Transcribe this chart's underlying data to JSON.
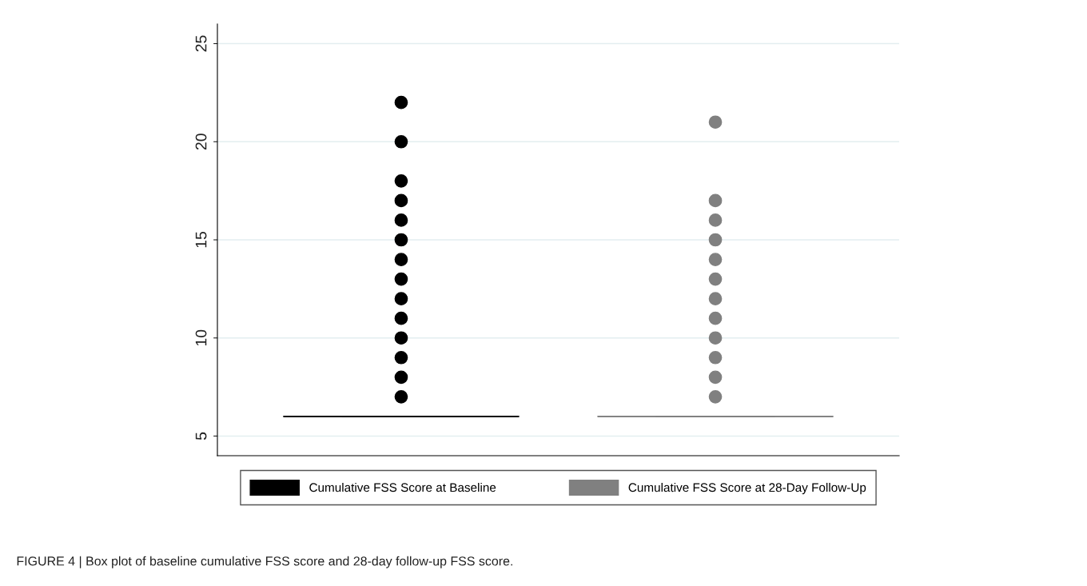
{
  "chart_data": {
    "type": "box",
    "categories": [
      null,
      null
    ],
    "series": [
      {
        "name": "Cumulative FSS Score at Baseline",
        "color": "#000000",
        "boxes": [
          {
            "low": 6,
            "q1": 6,
            "median": 6,
            "q3": 6,
            "high": 6,
            "outliers": [
              7,
              8,
              9,
              10,
              11,
              12,
              13,
              14,
              15,
              16,
              17,
              18,
              20,
              22
            ]
          },
          null
        ]
      },
      {
        "name": "Cumulative FSS Score at 28-Day Follow-Up",
        "color": "#808080",
        "boxes": [
          null,
          {
            "low": 6,
            "q1": 6,
            "median": 6,
            "q3": 6,
            "high": 6,
            "outliers": [
              7,
              8,
              9,
              10,
              11,
              12,
              13,
              14,
              15,
              16,
              17,
              21
            ]
          }
        ]
      }
    ],
    "ylim": [
      4,
      26
    ],
    "yticks": [
      5,
      10,
      15,
      20,
      25
    ],
    "grid": "y",
    "legend": "bottom",
    "annotations": [
      "FIGURE 4 | Box plot of baseline cumulative FSS score and 28-day follow-up FSS score."
    ]
  }
}
